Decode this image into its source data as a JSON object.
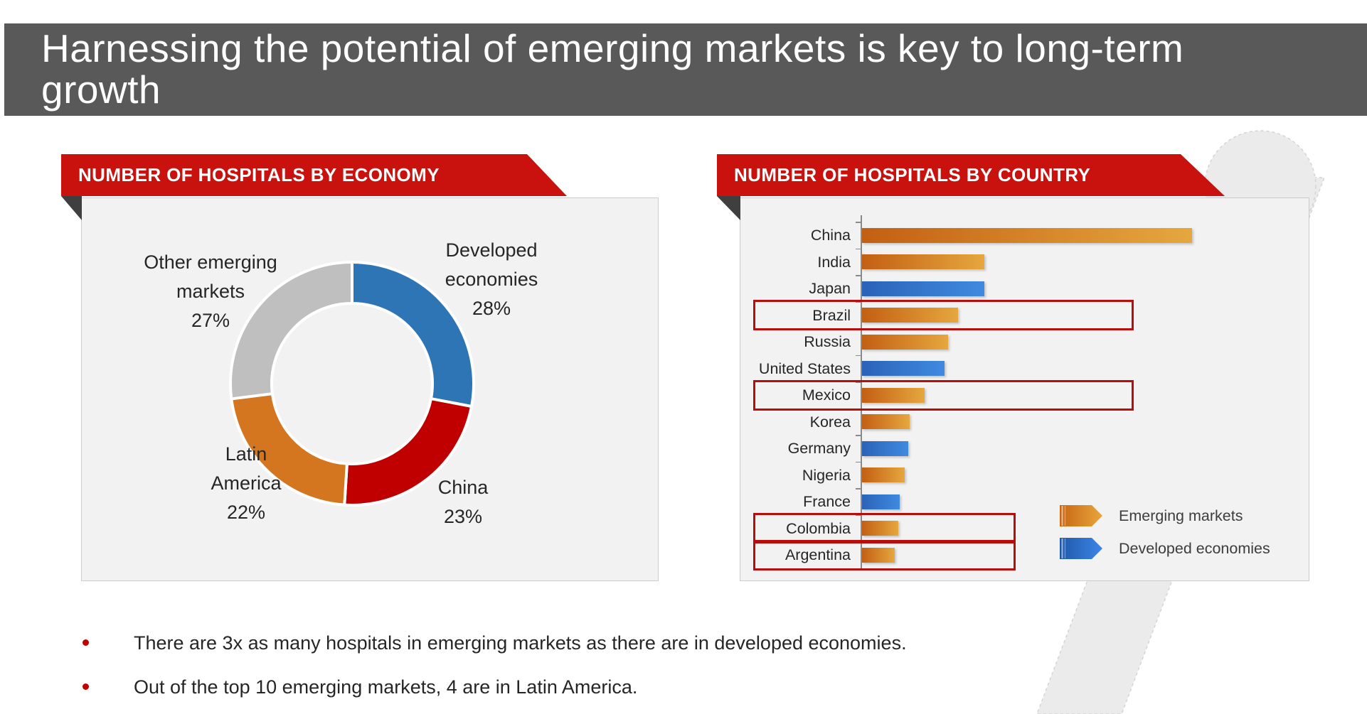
{
  "header": {
    "title_line1": "Harnessing the potential of emerging markets is key to long-term",
    "title_line2": "growth"
  },
  "bullets": [
    {
      "text": "There are 3x as many hospitals in emerging markets as there are in developed economies."
    },
    {
      "text": "Out of the top 10 emerging markets, 4 are in Latin America."
    }
  ],
  "left_chart": {
    "banner": "NUMBER OF HOSPITALS BY ECONOMY",
    "chart_data": {
      "type": "pie",
      "subtype": "donut",
      "title": "NUMBER OF HOSPITALS BY ECONOMY",
      "start_angle_deg": 0,
      "direction": "clockwise",
      "inner_radius_ratio": 0.66,
      "slices": [
        {
          "label_lines": [
            "Developed",
            "economies"
          ],
          "pct_label": "28%",
          "value": 28,
          "color": "#2E75B6"
        },
        {
          "label_lines": [
            "China"
          ],
          "pct_label": "23%",
          "value": 23,
          "color": "#C00000"
        },
        {
          "label_lines": [
            "Latin",
            "America"
          ],
          "pct_label": "22%",
          "value": 22,
          "color": "#D4761F"
        },
        {
          "label_lines": [
            "Other emerging",
            "markets"
          ],
          "pct_label": "27%",
          "value": 27,
          "color": "#BFBFBF"
        }
      ]
    }
  },
  "right_chart": {
    "banner": "NUMBER OF HOSPITALS BY COUNTRY",
    "chart_data": {
      "type": "bar",
      "orientation": "horizontal",
      "title": "NUMBER OF HOSPITALS BY COUNTRY",
      "note": "no numeric axis shown; values are relative bar lengths with China = 100",
      "categories": [
        "China",
        "India",
        "Japan",
        "Brazil",
        "Russia",
        "United States",
        "Mexico",
        "Korea",
        "Germany",
        "Nigeria",
        "France",
        "Colombia",
        "Argentina"
      ],
      "values": [
        100,
        37,
        37,
        29,
        26,
        25,
        19,
        14.5,
        14,
        13,
        11.5,
        11,
        10
      ],
      "groups": [
        "emerging",
        "emerging",
        "developed",
        "emerging",
        "emerging",
        "developed",
        "emerging",
        "emerging",
        "developed",
        "emerging",
        "developed",
        "emerging",
        "emerging"
      ],
      "group_styles": {
        "emerging": {
          "color_from": "#C35F13",
          "color_to": "#E6A73E"
        },
        "developed": {
          "color_from": "#2A63B8",
          "color_to": "#3F8AE0"
        }
      },
      "highlighted": [
        {
          "country": "Brazil",
          "box": "wide"
        },
        {
          "country": "Mexico",
          "box": "wide"
        },
        {
          "country": "Colombia",
          "box": "narrow"
        },
        {
          "country": "Argentina",
          "box": "narrow"
        }
      ],
      "legend": [
        {
          "label": "Emerging markets",
          "color_from": "#C86614",
          "color_to": "#E8A63C"
        },
        {
          "label": "Developed economies",
          "color_from": "#1F58A8",
          "color_to": "#3C86E8"
        }
      ],
      "legend_position": "bottom-right"
    }
  },
  "colors": {
    "header_bg": "#595959",
    "banner_red": "#C9110E",
    "fold_dark": "#3F3F3F",
    "panel_bg": "#F2F2F2",
    "panel_border": "#CBCBCB",
    "axis_gray": "#8A8A8A",
    "box_red": "#B80D0D",
    "bullet_red": "#C00000",
    "text_dark": "#262626",
    "decor_gray": "#EBEBEB"
  }
}
